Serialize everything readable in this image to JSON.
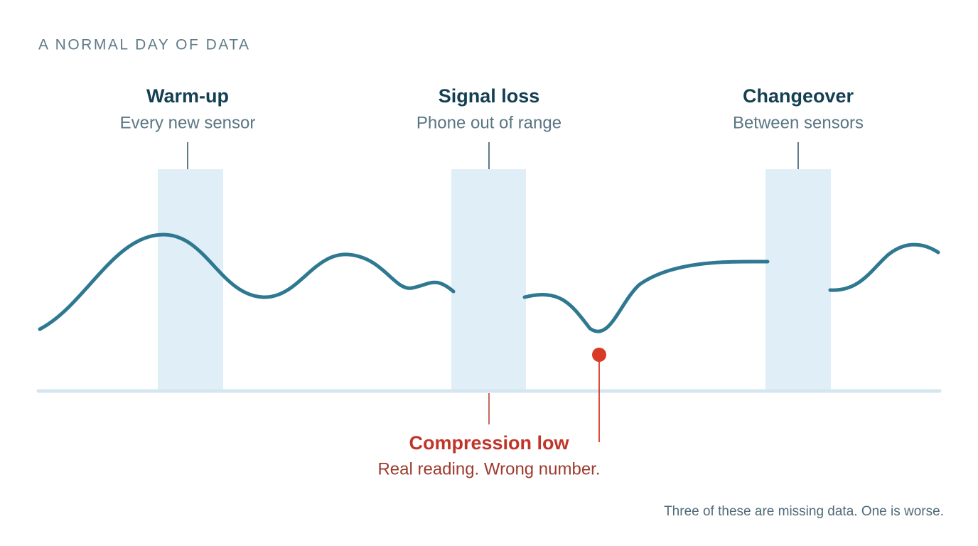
{
  "title": "A NORMAL DAY OF DATA",
  "annotations": [
    {
      "label": "Warm-up",
      "sublabel": "Every new sensor"
    },
    {
      "label": "Signal loss",
      "sublabel": "Phone out of range"
    },
    {
      "label": "Changeover",
      "sublabel": "Between sensors"
    },
    {
      "label": "Compression low",
      "sublabel": "Real reading. Wrong number."
    }
  ],
  "footnote": "Three of these are missing data. One is worse."
}
